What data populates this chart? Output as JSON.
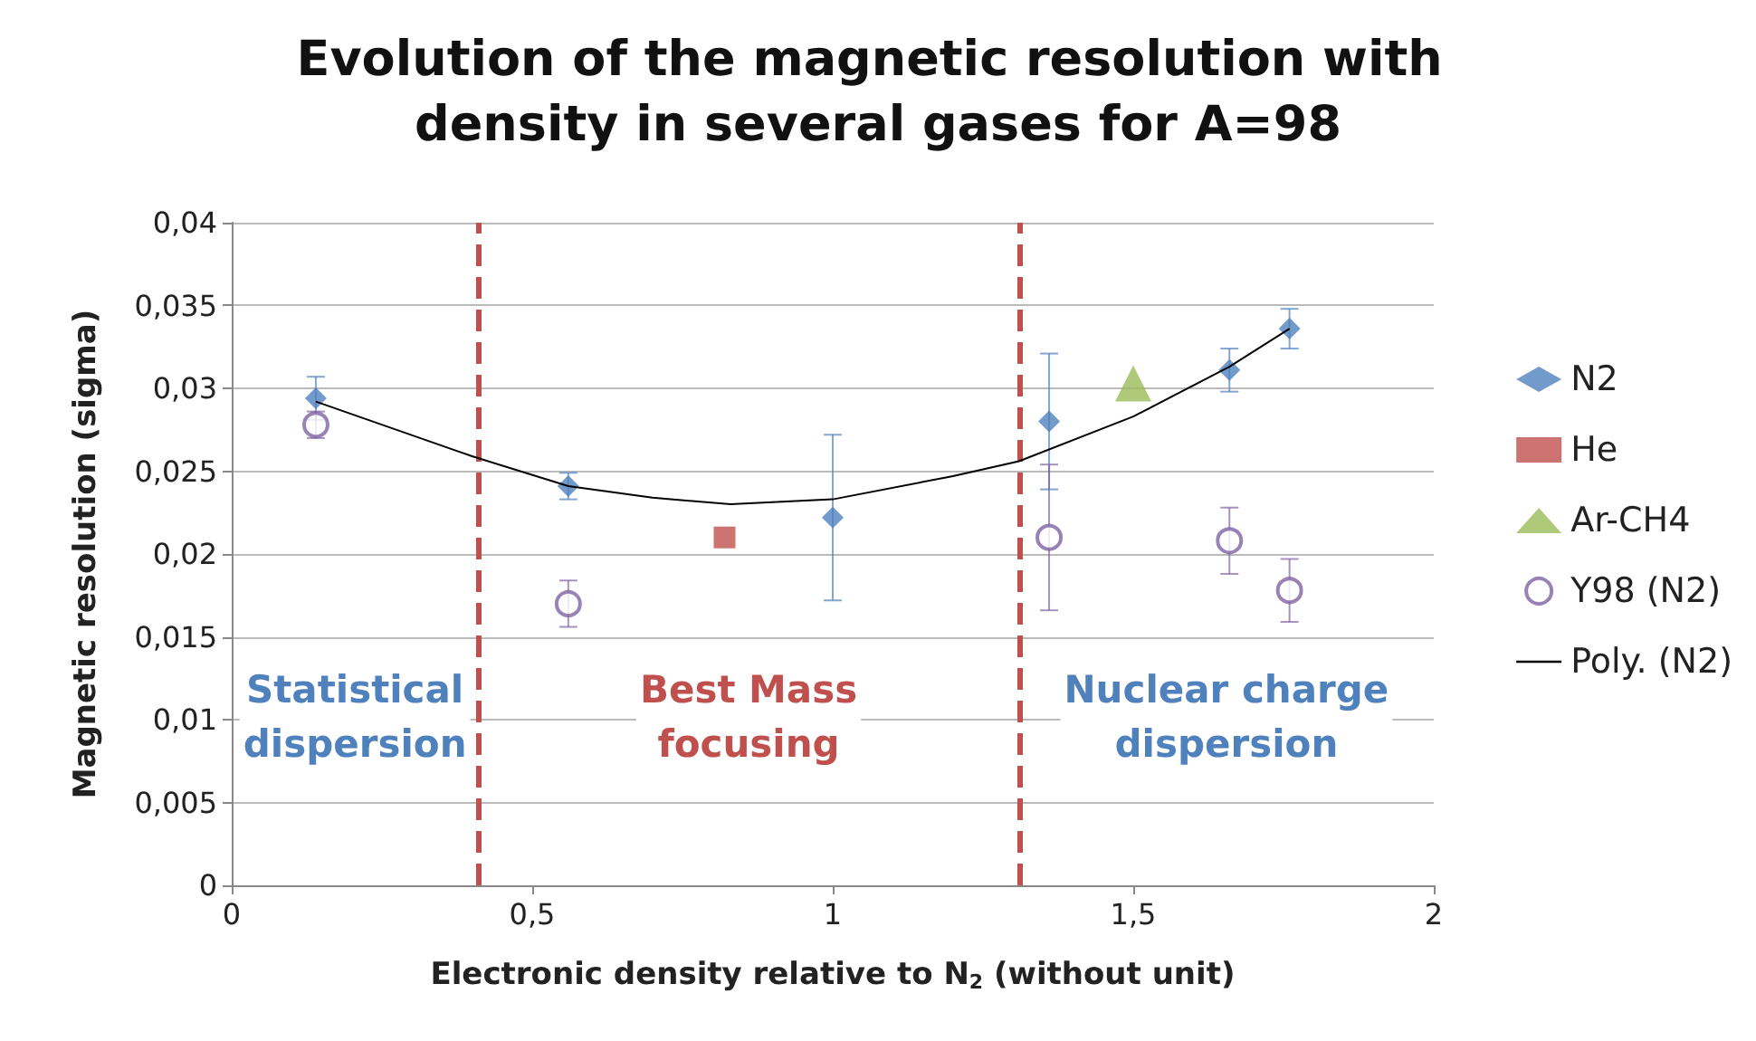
{
  "chart_data": {
    "type": "scatter",
    "title": "Evolution of the magnetic resolution with density in several gases for A=98",
    "xlabel": "Electronic density relative to N$_{2}$ (without unit)",
    "ylabel": "Magnetic resolution (sigma)",
    "xlim": [
      0,
      2
    ],
    "xticks": [
      0,
      {
        "value": 0.5,
        "label": "0,5"
      },
      1,
      {
        "value": 1.5,
        "label": "1,5"
      },
      2
    ],
    "ylim": [
      0,
      0.04
    ],
    "yticks": [
      0,
      {
        "value": 0.005,
        "label": "0,005"
      },
      {
        "value": 0.01,
        "label": "0,01"
      },
      {
        "value": 0.015,
        "label": "0,015"
      },
      {
        "value": 0.02,
        "label": "0,02"
      },
      {
        "value": 0.025,
        "label": "0,025"
      },
      {
        "value": 0.03,
        "label": "0,03"
      },
      {
        "value": 0.035,
        "label": "0,035"
      },
      {
        "value": 0.04,
        "label": "0,04"
      }
    ],
    "grid": "y",
    "legend": "right",
    "series": [
      {
        "name": "N2",
        "marker": "diamond",
        "color": "#4f81bd",
        "x": [
          0.14,
          0.56,
          1.0,
          1.36,
          1.66,
          1.76
        ],
        "values": [
          0.0294,
          0.0241,
          0.0222,
          0.028,
          0.0311,
          0.0336
        ],
        "errors": [
          0.0013,
          0.0008,
          0.005,
          0.0041,
          0.0013,
          0.0012
        ]
      },
      {
        "name": "He",
        "marker": "square",
        "color": "#c0504d",
        "x": [
          0.82
        ],
        "values": [
          0.021
        ]
      },
      {
        "name": "Ar-CH4",
        "marker": "triangle",
        "color": "#9bbb59",
        "x": [
          1.5
        ],
        "values": [
          0.0303
        ]
      },
      {
        "name": "Y98 (N2)",
        "marker": "circle",
        "color": "#8064a2",
        "x": [
          0.14,
          0.56,
          1.36,
          1.66,
          1.76
        ],
        "values": [
          0.0278,
          0.017,
          0.021,
          0.0208,
          0.0178
        ],
        "errors": [
          0.0008,
          0.0014,
          0.0044,
          0.002,
          0.0019
        ]
      },
      {
        "name": "Poly. (N2)",
        "type": "line",
        "marker": "none",
        "color": "#000000",
        "x": [
          0.14,
          0.4,
          0.56,
          0.7,
          0.83,
          1.0,
          1.2,
          1.31,
          1.5,
          1.66,
          1.76
        ],
        "values": [
          0.0292,
          0.0259,
          0.0241,
          0.0234,
          0.023,
          0.0233,
          0.0247,
          0.0256,
          0.0283,
          0.0313,
          0.0336
        ]
      }
    ],
    "ref_lines": [
      {
        "axis": "x",
        "value": 0.41,
        "color": "#c0504d",
        "line_style": "dashed"
      },
      {
        "axis": "x",
        "value": 1.31,
        "color": "#c0504d",
        "line_style": "dashed"
      }
    ],
    "annotations": [
      "Statistical dispersion",
      "Best Mass focusing",
      "Nuclear charge dispersion"
    ]
  }
}
